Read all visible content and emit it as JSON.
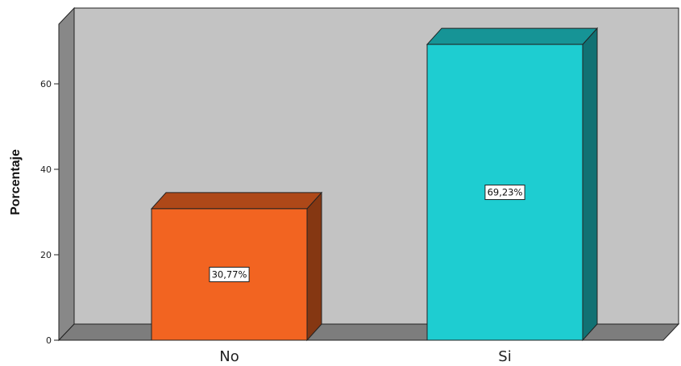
{
  "chart_data": {
    "type": "bar",
    "title": "",
    "xlabel": "",
    "ylabel": "Porcentaje",
    "categories": [
      "No",
      "Si"
    ],
    "values": [
      30.77,
      69.23
    ],
    "data_labels": [
      "30,77%",
      "69,23%"
    ],
    "ylim": [
      0,
      75
    ],
    "yticks": [
      0,
      20,
      40,
      60
    ],
    "colors": [
      "#f26421",
      "#1ecdd1"
    ],
    "grid": false,
    "legend": "none",
    "style": "3d"
  }
}
